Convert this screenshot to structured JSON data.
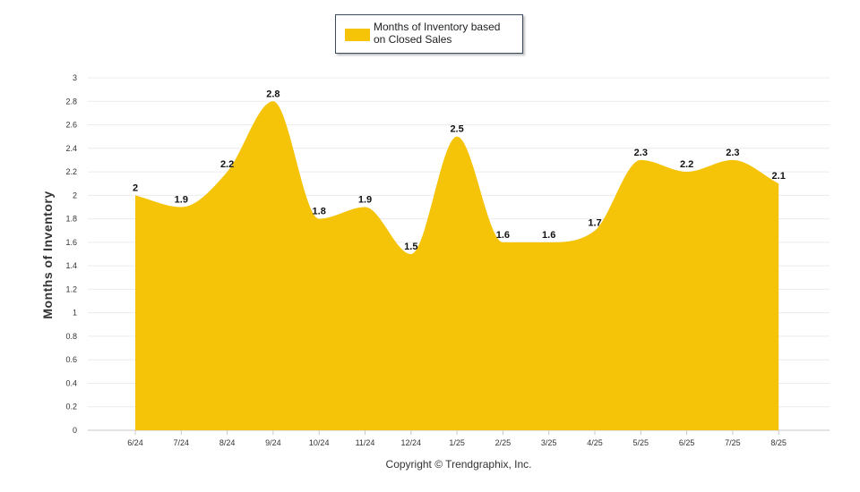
{
  "chart_data": {
    "type": "area",
    "categories": [
      "6/24",
      "7/24",
      "8/24",
      "9/24",
      "10/24",
      "11/24",
      "12/24",
      "1/25",
      "2/25",
      "3/25",
      "4/25",
      "5/25",
      "6/25",
      "7/25",
      "8/25"
    ],
    "series": [
      {
        "name": "Months of Inventory based\non Closed Sales",
        "values": [
          2,
          1.9,
          2.2,
          2.8,
          1.8,
          1.9,
          1.5,
          2.5,
          1.6,
          1.6,
          1.7,
          2.3,
          2.2,
          2.3,
          2.1
        ]
      }
    ],
    "ylim": [
      0,
      3
    ],
    "yticks": [
      "0",
      "0.2",
      "0.4",
      "0.6",
      "0.8",
      "1",
      "1.2",
      "1.4",
      "1.6",
      "1.8",
      "2",
      "2.2",
      "2.4",
      "2.6",
      "2.8",
      "3"
    ],
    "ylabel": "Months of Inventory",
    "xlabel": "",
    "legend_position": "top-center",
    "grid": true,
    "color": "#f5c308"
  },
  "footer": {
    "copyright": "Copyright © Trendgraphix, Inc."
  }
}
